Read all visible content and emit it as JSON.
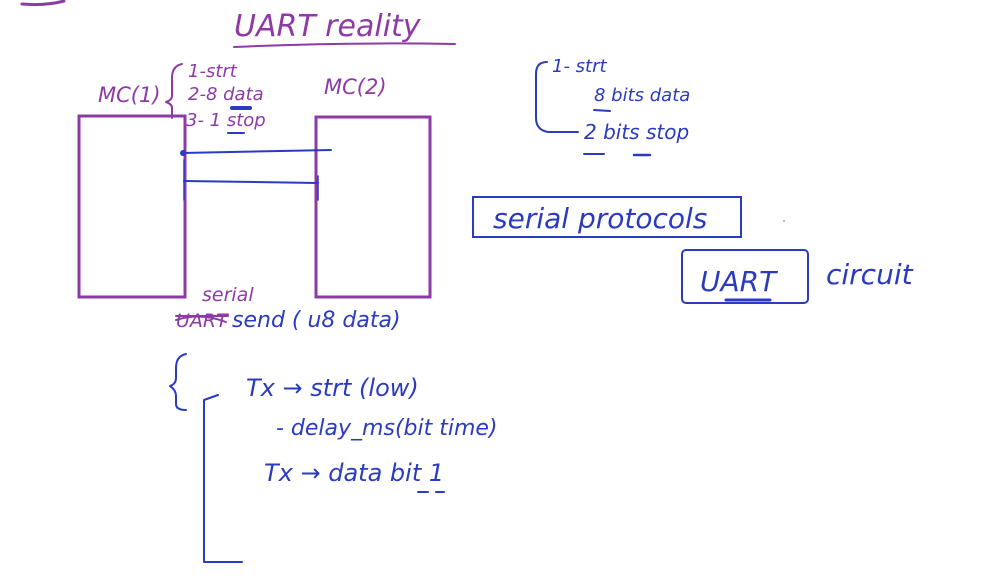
{
  "colors": {
    "purple": "#8e3aa6",
    "blue": "#2b3bbf",
    "background": "#ffffff"
  },
  "title": "UART reality",
  "mc1_label": "MC(1)",
  "mc2_label": "MC(2)",
  "frame_small": [
    "1-strt",
    "2-8 data",
    "3- 1 stop"
  ],
  "frame_right": [
    "1- strt",
    "8 bits data",
    "2 bits stop"
  ],
  "serial_protocols": "serial protocols",
  "uart_box": "UART",
  "circuit": "circuit",
  "serial_word": "serial",
  "struck_word": "UART",
  "send_rest": "send ( u8 data)",
  "code_lines": [
    "Tx → strt (low)",
    "- delay_ms(bit time)",
    "Tx → data bit 1"
  ]
}
